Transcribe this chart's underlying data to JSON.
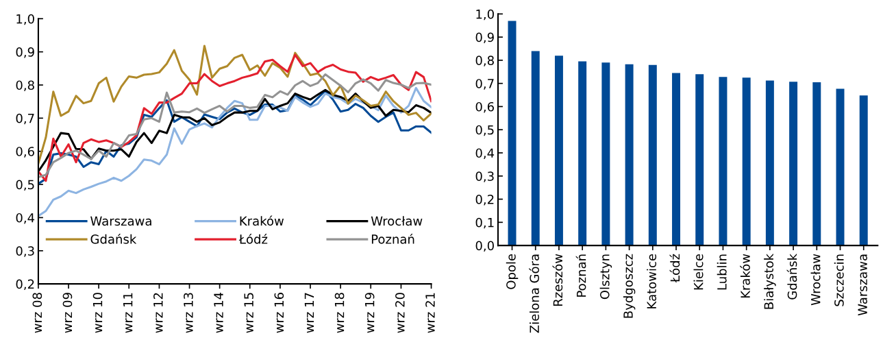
{
  "chart_data": [
    {
      "type": "line",
      "x": [
        "2008-09",
        "2008-12",
        "2009-03",
        "2009-06",
        "2009-09",
        "2009-12",
        "2010-03",
        "2010-06",
        "2010-09",
        "2010-12",
        "2011-03",
        "2011-06",
        "2011-09",
        "2011-12",
        "2012-03",
        "2012-06",
        "2012-09",
        "2012-12",
        "2013-03",
        "2013-06",
        "2013-09",
        "2013-12",
        "2014-03",
        "2014-06",
        "2014-09",
        "2014-12",
        "2015-03",
        "2015-06",
        "2015-09",
        "2015-12",
        "2016-03",
        "2016-06",
        "2016-09",
        "2016-12",
        "2017-03",
        "2017-06",
        "2017-09",
        "2017-12",
        "2018-03",
        "2018-06",
        "2018-09",
        "2018-12",
        "2019-03",
        "2019-06",
        "2019-09",
        "2019-12",
        "2020-03",
        "2020-06",
        "2020-09",
        "2020-12",
        "2021-03",
        "2021-06",
        "2021-09"
      ],
      "xlim": [
        "2008-09",
        "2021-09"
      ],
      "xticks": [
        {
          "value": "2008-09",
          "label": "wrz 08"
        },
        {
          "value": "2009-09",
          "label": "wrz 09"
        },
        {
          "value": "2010-09",
          "label": "wrz 10"
        },
        {
          "value": "2011-09",
          "label": "wrz 11"
        },
        {
          "value": "2012-09",
          "label": "wrz 12"
        },
        {
          "value": "2013-09",
          "label": "wrz 13"
        },
        {
          "value": "2014-09",
          "label": "wrz 14"
        },
        {
          "value": "2015-09",
          "label": "wrz 15"
        },
        {
          "value": "2016-09",
          "label": "wrz 16"
        },
        {
          "value": "2017-09",
          "label": "wrz 17"
        },
        {
          "value": "2018-09",
          "label": "wrz 18"
        },
        {
          "value": "2019-09",
          "label": "wrz 19"
        },
        {
          "value": "2020-09",
          "label": "wrz 20"
        },
        {
          "value": "2021-09",
          "label": "wrz 21"
        }
      ],
      "ylim": [
        0.2,
        1.0
      ],
      "yticks": [
        {
          "value": 0.2,
          "label": "0,2"
        },
        {
          "value": 0.3,
          "label": "0,3"
        },
        {
          "value": 0.4,
          "label": "0,4"
        },
        {
          "value": 0.5,
          "label": "0,5"
        },
        {
          "value": 0.6,
          "label": "0,6"
        },
        {
          "value": 0.7,
          "label": "0,7"
        },
        {
          "value": 0.8,
          "label": "0,8"
        },
        {
          "value": 0.9,
          "label": "0,9"
        },
        {
          "value": 1.0,
          "label": "1,0"
        }
      ],
      "grid": false,
      "legend": "bottom",
      "marker": "none",
      "line_style": "solid",
      "series": [
        {
          "name": "Warszawa",
          "color": "#004a96",
          "values": [
            0.502,
            0.517,
            0.59,
            0.594,
            0.59,
            0.584,
            0.553,
            0.567,
            0.561,
            0.601,
            0.584,
            0.618,
            0.623,
            0.642,
            0.71,
            0.704,
            0.73,
            0.754,
            0.689,
            0.703,
            0.689,
            0.676,
            0.711,
            0.704,
            0.697,
            0.717,
            0.729,
            0.717,
            0.71,
            0.722,
            0.741,
            0.741,
            0.72,
            0.724,
            0.768,
            0.756,
            0.739,
            0.761,
            0.783,
            0.756,
            0.72,
            0.725,
            0.743,
            0.731,
            0.707,
            0.689,
            0.704,
            0.717,
            0.663,
            0.663,
            0.675,
            0.675,
            0.656
          ]
        },
        {
          "name": "Kraków",
          "color": "#8db4e2",
          "values": [
            0.405,
            0.42,
            0.454,
            0.464,
            0.481,
            0.474,
            0.485,
            0.493,
            0.502,
            0.509,
            0.52,
            0.511,
            0.526,
            0.546,
            0.575,
            0.572,
            0.561,
            0.59,
            0.669,
            0.623,
            0.666,
            0.676,
            0.684,
            0.672,
            0.704,
            0.731,
            0.752,
            0.745,
            0.695,
            0.695,
            0.737,
            0.737,
            0.732,
            0.722,
            0.764,
            0.747,
            0.734,
            0.743,
            0.774,
            0.764,
            0.758,
            0.743,
            0.758,
            0.747,
            0.737,
            0.724,
            0.768,
            0.737,
            0.717,
            0.737,
            0.791,
            0.752,
            0.733
          ]
        },
        {
          "name": "Wrocław",
          "color": "#000000",
          "values": [
            0.539,
            0.573,
            0.614,
            0.655,
            0.652,
            0.607,
            0.606,
            0.577,
            0.608,
            0.602,
            0.602,
            0.606,
            0.584,
            0.628,
            0.655,
            0.625,
            0.662,
            0.655,
            0.71,
            0.703,
            0.702,
            0.689,
            0.7,
            0.679,
            0.687,
            0.704,
            0.717,
            0.717,
            0.722,
            0.722,
            0.758,
            0.727,
            0.737,
            0.745,
            0.774,
            0.764,
            0.756,
            0.771,
            0.785,
            0.77,
            0.764,
            0.752,
            0.774,
            0.751,
            0.731,
            0.737,
            0.707,
            0.725,
            0.722,
            0.718,
            0.739,
            0.731,
            0.716
          ]
        },
        {
          "name": "Gdańsk",
          "color": "#b08a2a",
          "values": [
            0.563,
            0.642,
            0.78,
            0.707,
            0.72,
            0.767,
            0.745,
            0.752,
            0.805,
            0.822,
            0.75,
            0.795,
            0.826,
            0.822,
            0.831,
            0.833,
            0.838,
            0.864,
            0.905,
            0.843,
            0.816,
            0.771,
            0.918,
            0.822,
            0.849,
            0.857,
            0.882,
            0.891,
            0.845,
            0.859,
            0.828,
            0.866,
            0.852,
            0.825,
            0.897,
            0.866,
            0.83,
            0.835,
            0.812,
            0.769,
            0.798,
            0.744,
            0.768,
            0.754,
            0.737,
            0.741,
            0.78,
            0.751,
            0.731,
            0.71,
            0.716,
            0.693,
            0.714
          ]
        },
        {
          "name": "Łódź",
          "color": "#e3202e",
          "values": [
            0.539,
            0.511,
            0.638,
            0.584,
            0.621,
            0.567,
            0.625,
            0.636,
            0.628,
            0.633,
            0.625,
            0.613,
            0.628,
            0.648,
            0.73,
            0.713,
            0.747,
            0.747,
            0.761,
            0.774,
            0.805,
            0.805,
            0.833,
            0.812,
            0.797,
            0.805,
            0.812,
            0.822,
            0.828,
            0.835,
            0.871,
            0.876,
            0.857,
            0.84,
            0.891,
            0.857,
            0.866,
            0.839,
            0.853,
            0.861,
            0.847,
            0.84,
            0.837,
            0.81,
            0.824,
            0.815,
            0.822,
            0.83,
            0.801,
            0.785,
            0.839,
            0.824,
            0.751
          ]
        },
        {
          "name": "Poznań",
          "color": "#939393",
          "values": [
            0.522,
            0.529,
            0.567,
            0.58,
            0.595,
            0.602,
            0.59,
            0.577,
            0.602,
            0.584,
            0.625,
            0.614,
            0.648,
            0.652,
            0.696,
            0.7,
            0.689,
            0.777,
            0.717,
            0.72,
            0.718,
            0.729,
            0.716,
            0.727,
            0.737,
            0.72,
            0.737,
            0.737,
            0.731,
            0.734,
            0.77,
            0.763,
            0.781,
            0.771,
            0.799,
            0.812,
            0.797,
            0.806,
            0.832,
            0.815,
            0.798,
            0.778,
            0.805,
            0.817,
            0.805,
            0.783,
            0.815,
            0.806,
            0.801,
            0.791,
            0.805,
            0.806,
            0.801
          ]
        }
      ]
    },
    {
      "type": "bar",
      "categories": [
        "Opole",
        "Zielona Góra",
        "Rzeszów",
        "Poznań",
        "Olsztyn",
        "Bydgoszcz",
        "Katowice",
        "Łódź",
        "Kielce",
        "Lublin",
        "Kraków",
        "Białystok",
        "Gdańsk",
        "Wrocław",
        "Szczecin",
        "Warszawa"
      ],
      "values": [
        0.97,
        0.84,
        0.82,
        0.795,
        0.79,
        0.783,
        0.78,
        0.745,
        0.74,
        0.728,
        0.725,
        0.712,
        0.707,
        0.705,
        0.677,
        0.648
      ],
      "color": "#004a96",
      "ylim": [
        0.0,
        1.0
      ],
      "yticks": [
        {
          "value": 0.0,
          "label": "0,0"
        },
        {
          "value": 0.1,
          "label": "0,1"
        },
        {
          "value": 0.2,
          "label": "0,2"
        },
        {
          "value": 0.3,
          "label": "0,3"
        },
        {
          "value": 0.4,
          "label": "0,4"
        },
        {
          "value": 0.5,
          "label": "0,5"
        },
        {
          "value": 0.6,
          "label": "0,6"
        },
        {
          "value": 0.7,
          "label": "0,7"
        },
        {
          "value": 0.8,
          "label": "0,8"
        },
        {
          "value": 0.9,
          "label": "0,9"
        },
        {
          "value": 1.0,
          "label": "1,0"
        }
      ],
      "grid": false
    }
  ]
}
